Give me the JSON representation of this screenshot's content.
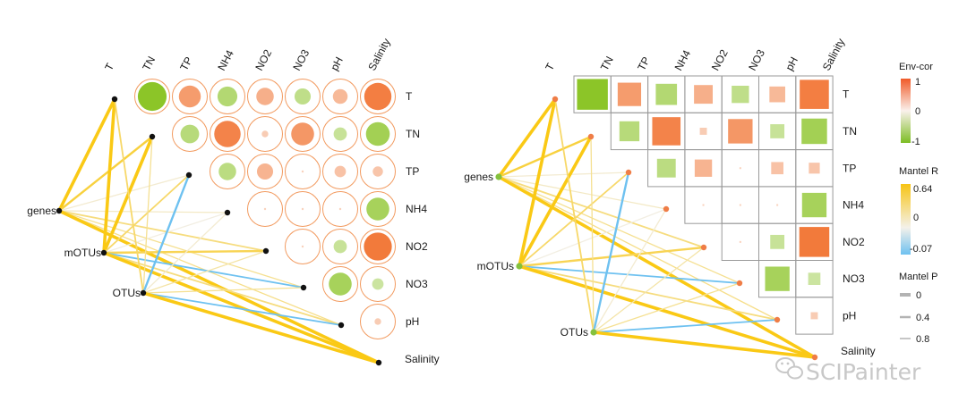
{
  "chart_data": [
    {
      "type": "heatmap",
      "variant": "circle",
      "variables": [
        "T",
        "TN",
        "TP",
        "NH4",
        "NO2",
        "NO3",
        "pH",
        "Salinity"
      ],
      "env_cor": [
        [
          null,
          -0.95,
          0.55,
          -0.45,
          0.35,
          -0.3,
          0.25,
          0.85
        ],
        [
          null,
          null,
          -0.4,
          0.8,
          0.05,
          0.6,
          -0.2,
          -0.65
        ],
        [
          null,
          null,
          null,
          -0.35,
          0.3,
          0.0,
          0.15,
          0.12
        ],
        [
          null,
          null,
          null,
          null,
          0.0,
          0.0,
          0.0,
          -0.6
        ],
        [
          null,
          null,
          null,
          null,
          null,
          0.0,
          -0.2,
          0.9
        ],
        [
          null,
          null,
          null,
          null,
          null,
          null,
          -0.6,
          -0.15
        ],
        [
          null,
          null,
          null,
          null,
          null,
          null,
          null,
          0.05
        ],
        [
          null,
          null,
          null,
          null,
          null,
          null,
          null,
          null
        ]
      ],
      "groups": [
        "genes",
        "mOTUs",
        "OTUs"
      ],
      "mantel": [
        {
          "from": "genes",
          "to": "T",
          "r": 0.5,
          "p": 0.05
        },
        {
          "from": "genes",
          "to": "TN",
          "r": 0.4,
          "p": 0.1
        },
        {
          "from": "genes",
          "to": "TP",
          "r": 0.05,
          "p": 0.8
        },
        {
          "from": "genes",
          "to": "NH4",
          "r": 0.08,
          "p": 0.6
        },
        {
          "from": "genes",
          "to": "NO2",
          "r": 0.25,
          "p": 0.4
        },
        {
          "from": "genes",
          "to": "NO3",
          "r": 0.2,
          "p": 0.5
        },
        {
          "from": "genes",
          "to": "pH",
          "r": 0.22,
          "p": 0.5
        },
        {
          "from": "genes",
          "to": "Salinity",
          "r": 0.6,
          "p": 0.01
        },
        {
          "from": "mOTUs",
          "to": "T",
          "r": 0.55,
          "p": 0.01
        },
        {
          "from": "mOTUs",
          "to": "TN",
          "r": 0.6,
          "p": 0.01
        },
        {
          "from": "mOTUs",
          "to": "TP",
          "r": 0.3,
          "p": 0.3
        },
        {
          "from": "mOTUs",
          "to": "NH4",
          "r": 0.01,
          "p": 0.8
        },
        {
          "from": "mOTUs",
          "to": "NO2",
          "r": 0.35,
          "p": 0.2
        },
        {
          "from": "mOTUs",
          "to": "NO3",
          "r": -0.06,
          "p": 0.4
        },
        {
          "from": "mOTUs",
          "to": "pH",
          "r": 0.25,
          "p": 0.3
        },
        {
          "from": "mOTUs",
          "to": "Salinity",
          "r": 0.62,
          "p": 0.01
        },
        {
          "from": "OTUs",
          "to": "T",
          "r": 0.3,
          "p": 0.3
        },
        {
          "from": "OTUs",
          "to": "TN",
          "r": 0.2,
          "p": 0.5
        },
        {
          "from": "OTUs",
          "to": "TP",
          "r": -0.07,
          "p": 0.2
        },
        {
          "from": "OTUs",
          "to": "NH4",
          "r": 0.05,
          "p": 0.6
        },
        {
          "from": "OTUs",
          "to": "NO2",
          "r": 0.15,
          "p": 0.6
        },
        {
          "from": "OTUs",
          "to": "NO3",
          "r": 0.2,
          "p": 0.5
        },
        {
          "from": "OTUs",
          "to": "pH",
          "r": -0.06,
          "p": 0.3
        },
        {
          "from": "OTUs",
          "to": "Salinity",
          "r": 0.6,
          "p": 0.02
        }
      ]
    },
    {
      "type": "heatmap",
      "variant": "square",
      "variables": [
        "T",
        "TN",
        "TP",
        "NH4",
        "NO2",
        "NO3",
        "pH",
        "Salinity"
      ],
      "same_data_as": "panel 1"
    }
  ],
  "legend": {
    "env_cor": {
      "title": "Env-cor",
      "ticks": [
        "1",
        "0",
        "-1"
      ]
    },
    "mantel_r": {
      "title": "Mantel R",
      "ticks": [
        "0.64",
        "0",
        "-0.07"
      ]
    },
    "mantel_p": {
      "title": "Mantel P",
      "ticks": [
        "0",
        "0.4",
        "0.8"
      ]
    }
  },
  "colors": {
    "pos": "#f27636",
    "neg": "#8cc528",
    "r_pos": "#fac915",
    "r_neg": "#6ec1f0",
    "ring": "#f29a5f",
    "grid": "#999999",
    "node_left": "#111111",
    "node_group_right": "#84c13d",
    "node_var_right": "#ef7d46"
  },
  "watermark": {
    "icon": "wechat-icon",
    "text": "SCIPainter"
  }
}
